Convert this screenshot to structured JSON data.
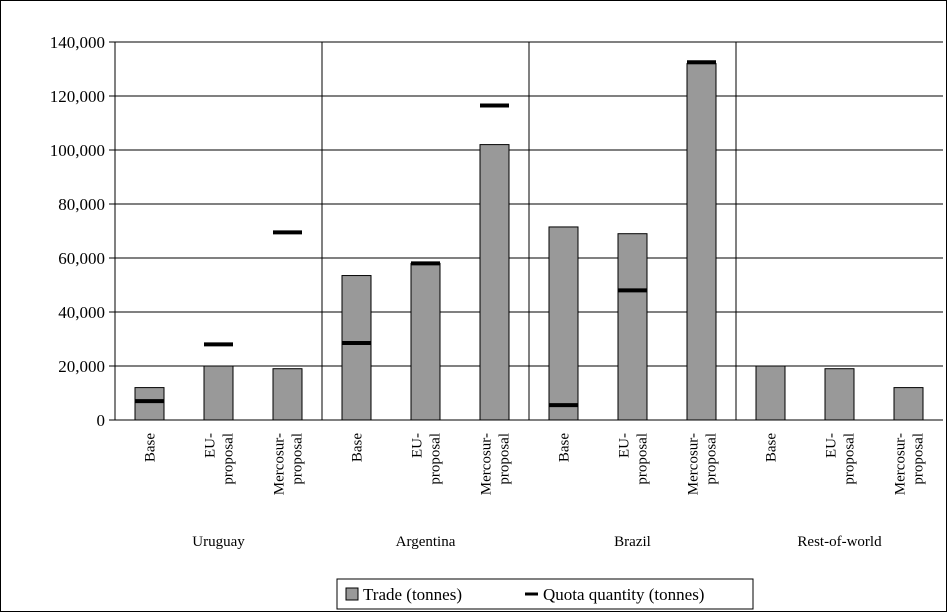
{
  "chart_data": {
    "type": "bar",
    "groups": [
      "Uruguay",
      "Argentina",
      "Brazil",
      "Rest-of-world"
    ],
    "scenarios": [
      [
        "Base"
      ],
      [
        "EU-",
        "proposal"
      ],
      [
        "Mercosur-",
        "proposal"
      ]
    ],
    "ylim": [
      0,
      140000
    ],
    "yticks": [
      "0",
      "20,000",
      "40,000",
      "60,000",
      "80,000",
      "100,000",
      "120,000",
      "140,000"
    ],
    "ytick_values": [
      0,
      20000,
      40000,
      60000,
      80000,
      100000,
      120000,
      140000
    ],
    "grid": true,
    "legend_position": "bottom",
    "series": [
      {
        "name": "Trade (tonnes)",
        "mark": "bar",
        "color": "#999999",
        "values": [
          12000,
          20000,
          19000,
          53500,
          58000,
          102000,
          71500,
          69000,
          132000,
          20000,
          19000,
          12000
        ]
      },
      {
        "name": "Quota quantity (tonnes)",
        "mark": "dash",
        "color": "#000000",
        "values": [
          7000,
          28000,
          69500,
          28500,
          58000,
          116500,
          5500,
          48000,
          132500,
          null,
          null,
          null
        ]
      }
    ]
  }
}
